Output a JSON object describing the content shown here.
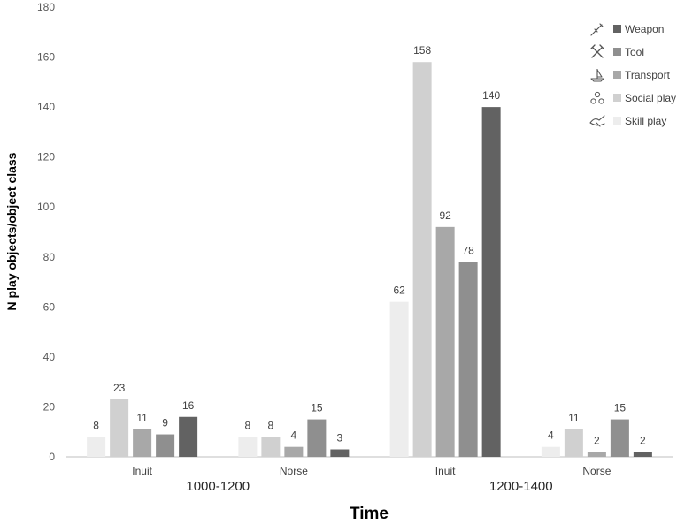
{
  "chart_data": {
    "type": "bar",
    "title": "",
    "xlabel": "Time",
    "ylabel": "N play objects/object class",
    "ylim": [
      0,
      180
    ],
    "yticks": [
      0,
      20,
      40,
      60,
      80,
      100,
      120,
      140,
      160,
      180
    ],
    "grid": false,
    "legend_position": "top-right",
    "categories": [
      "Inuit",
      "Norse",
      "Inuit",
      "Norse"
    ],
    "groups": [
      {
        "label": "1000-1200",
        "categories": [
          "Inuit",
          "Norse"
        ]
      },
      {
        "label": "1200-1400",
        "categories": [
          "Inuit",
          "Norse"
        ]
      }
    ],
    "series": [
      {
        "name": "Skill play",
        "color": "#ededed",
        "icon": "skill-play-icon",
        "values": [
          8,
          8,
          62,
          4
        ]
      },
      {
        "name": "Social play",
        "color": "#d0d0d0",
        "icon": "social-play-icon",
        "values": [
          23,
          8,
          158,
          11
        ]
      },
      {
        "name": "Transport",
        "color": "#a8a8a8",
        "icon": "transport-icon",
        "values": [
          11,
          4,
          92,
          2
        ]
      },
      {
        "name": "Tool",
        "color": "#8f8f8f",
        "icon": "tool-icon",
        "values": [
          9,
          15,
          78,
          15
        ]
      },
      {
        "name": "Weapon",
        "color": "#626262",
        "icon": "weapon-icon",
        "values": [
          16,
          3,
          140,
          2
        ]
      }
    ],
    "legend_order": [
      "Weapon",
      "Tool",
      "Transport",
      "Social play",
      "Skill play"
    ]
  }
}
